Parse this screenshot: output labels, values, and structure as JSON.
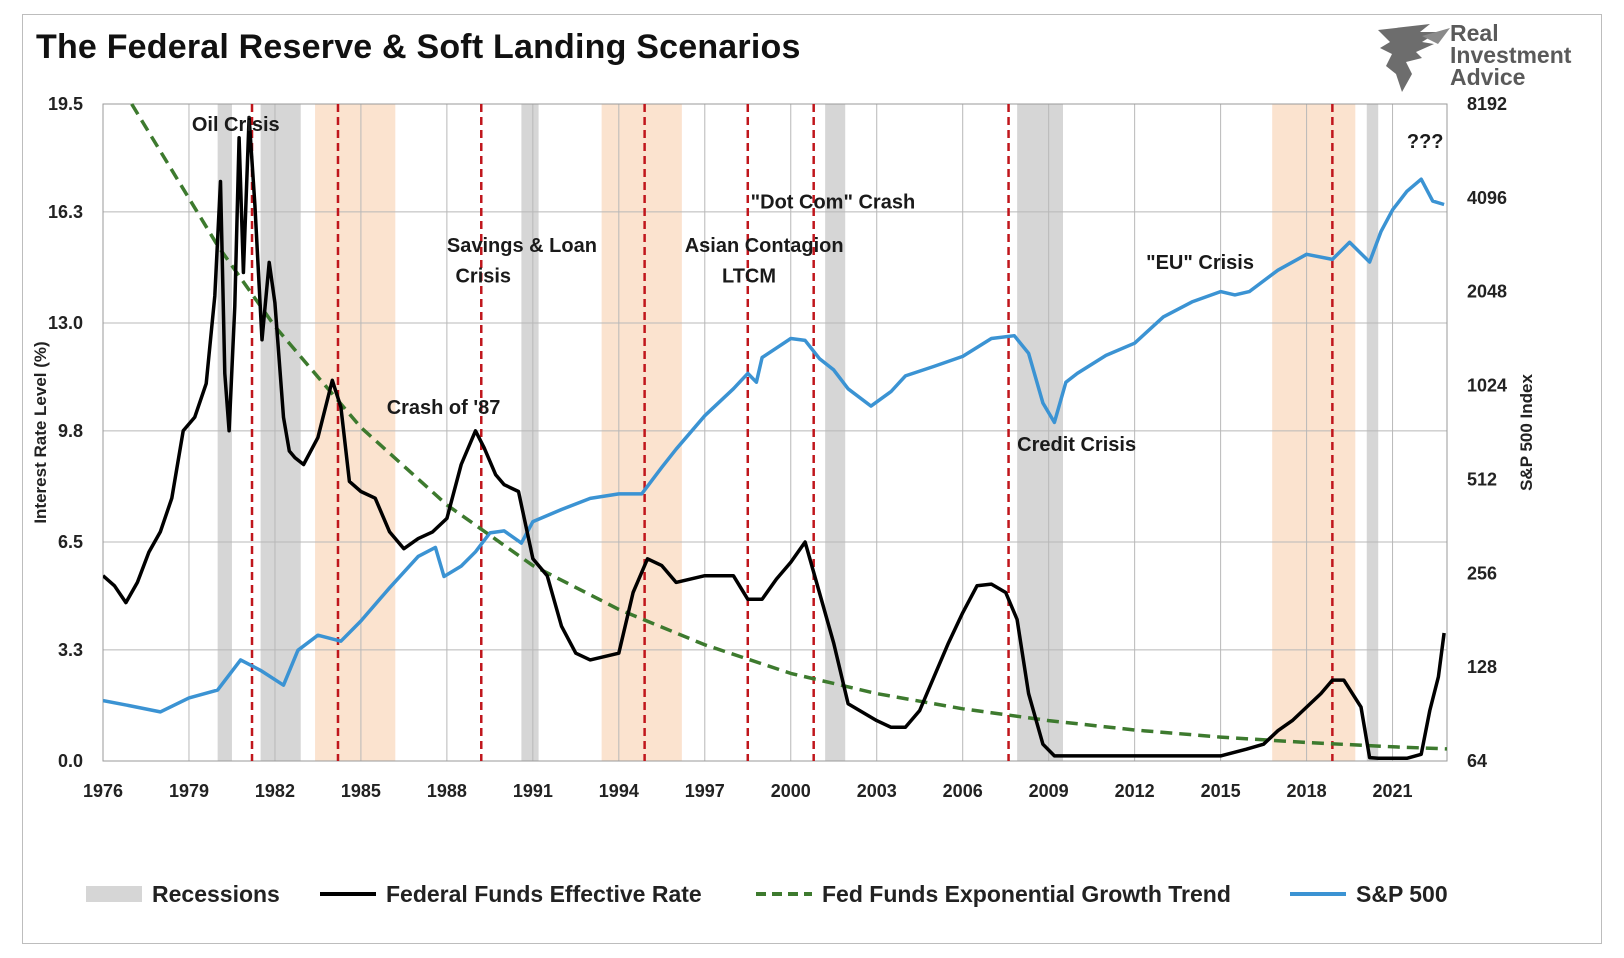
{
  "title": "The Federal Reserve & Soft Landing Scenarios",
  "brand": {
    "line1": "Real",
    "line2": "Investment",
    "line3": "Advice"
  },
  "colors": {
    "recession": "#d6d6d6",
    "landing": "#fbe3cf",
    "fed": "#000000",
    "trend": "#3d7a2e",
    "sp500": "#3b93d3",
    "marker": "#c0161c",
    "grid": "#b8b8b8"
  },
  "legend": {
    "recessions": "Recessions",
    "fed": "Federal Funds Effective Rate",
    "trend": "Fed Funds Exponential Growth Trend",
    "sp500": "S&P 500"
  },
  "chart_data": {
    "type": "line",
    "title": "The Federal Reserve & Soft Landing Scenarios",
    "ylabel": "Interest Rate Level (%)",
    "y2label": "S&P 500 Index",
    "x_range": [
      1976,
      2022.9
    ],
    "xticks": [
      "1976",
      "1979",
      "1982",
      "1985",
      "1988",
      "1991",
      "1994",
      "1997",
      "2000",
      "2003",
      "2006",
      "2009",
      "2012",
      "2015",
      "2018",
      "2021"
    ],
    "ylim": [
      0,
      19.5
    ],
    "yticks": [
      "0.0",
      "3.3",
      "6.5",
      "9.8",
      "13.0",
      "16.3",
      "19.5"
    ],
    "y2_scale": "log2",
    "y2lim": [
      64,
      8192
    ],
    "y2ticks": [
      "64",
      "128",
      "256",
      "512",
      "1024",
      "2048",
      "4096",
      "8192"
    ],
    "recessions": [
      [
        1980.0,
        1980.5
      ],
      [
        1981.5,
        1982.9
      ],
      [
        1990.6,
        1991.2
      ],
      [
        2001.2,
        2001.9
      ],
      [
        2007.9,
        2009.5
      ],
      [
        2020.1,
        2020.5
      ]
    ],
    "soft_landing_periods": [
      [
        1983.4,
        1986.2
      ],
      [
        1993.4,
        1996.2
      ],
      [
        2016.8,
        2019.7
      ]
    ],
    "tightening_markers": [
      1981.2,
      1984.2,
      1989.2,
      1994.9,
      1998.5,
      2000.8,
      2007.6,
      2018.9
    ],
    "annotations": [
      {
        "text": "Oil Crisis",
        "x": 1979.1,
        "y": 18.7
      },
      {
        "text": "Crash of '87",
        "x": 1985.9,
        "y": 10.3
      },
      {
        "text": "Savings & Loan",
        "x": 1988.0,
        "y": 15.1
      },
      {
        "text": "Crisis",
        "x": 1988.3,
        "y": 14.2
      },
      {
        "text": "Asian Contagion",
        "x": 1996.3,
        "y": 15.1
      },
      {
        "text": "LTCM",
        "x": 1997.6,
        "y": 14.2
      },
      {
        "text": "\"Dot Com\" Crash",
        "x": 1998.6,
        "y": 16.4
      },
      {
        "text": "\"EU\" Crisis",
        "x": 2012.4,
        "y": 14.6
      },
      {
        "text": "Credit Crisis",
        "x": 2007.9,
        "y": 9.2
      },
      {
        "text": "???",
        "x": 2021.5,
        "y": 18.2
      }
    ],
    "series": [
      {
        "name": "Federal Funds Effective Rate",
        "axis": "left",
        "x": [
          1976.0,
          1976.4,
          1976.8,
          1977.2,
          1977.6,
          1978.0,
          1978.4,
          1978.8,
          1979.2,
          1979.6,
          1979.9,
          1980.1,
          1980.25,
          1980.4,
          1980.6,
          1980.75,
          1980.9,
          1981.1,
          1981.3,
          1981.55,
          1981.8,
          1982.0,
          1982.3,
          1982.5,
          1982.7,
          1983.0,
          1983.5,
          1984.0,
          1984.3,
          1984.6,
          1985.0,
          1985.5,
          1986.0,
          1986.5,
          1987.0,
          1987.5,
          1988.0,
          1988.5,
          1989.0,
          1989.3,
          1989.7,
          1990.0,
          1990.5,
          1991.0,
          1991.5,
          1992.0,
          1992.5,
          1993.0,
          1994.0,
          1994.5,
          1995.0,
          1995.5,
          1996.0,
          1997.0,
          1998.0,
          1998.5,
          1999.0,
          1999.5,
          2000.0,
          2000.5,
          2001.0,
          2001.5,
          2002.0,
          2003.0,
          2003.5,
          2004.0,
          2004.5,
          2005.0,
          2005.5,
          2006.0,
          2006.5,
          2007.0,
          2007.5,
          2007.9,
          2008.3,
          2008.8,
          2009.2,
          2010.0,
          2012.0,
          2015.0,
          2015.9,
          2016.5,
          2017.0,
          2017.5,
          2018.0,
          2018.5,
          2018.9,
          2019.3,
          2019.6,
          2019.9,
          2020.2,
          2020.5,
          2021.0,
          2021.5,
          2022.0,
          2022.3,
          2022.6,
          2022.8
        ],
        "values": [
          5.5,
          5.2,
          4.7,
          5.3,
          6.2,
          6.8,
          7.8,
          9.8,
          10.2,
          11.2,
          13.8,
          17.2,
          11.5,
          9.8,
          13.5,
          18.5,
          14.5,
          19.1,
          16.5,
          12.5,
          14.8,
          13.6,
          10.2,
          9.2,
          9.0,
          8.8,
          9.6,
          11.3,
          10.5,
          8.3,
          8.0,
          7.8,
          6.8,
          6.3,
          6.6,
          6.8,
          7.2,
          8.8,
          9.8,
          9.3,
          8.5,
          8.2,
          8.0,
          6.0,
          5.5,
          4.0,
          3.2,
          3.0,
          3.2,
          5.0,
          6.0,
          5.8,
          5.3,
          5.5,
          5.5,
          4.8,
          4.8,
          5.4,
          5.9,
          6.5,
          5.0,
          3.5,
          1.7,
          1.2,
          1.0,
          1.0,
          1.5,
          2.5,
          3.5,
          4.4,
          5.2,
          5.25,
          5.0,
          4.2,
          2.0,
          0.5,
          0.15,
          0.15,
          0.15,
          0.15,
          0.35,
          0.5,
          0.9,
          1.2,
          1.6,
          2.0,
          2.4,
          2.4,
          2.0,
          1.6,
          0.1,
          0.08,
          0.08,
          0.08,
          0.2,
          1.5,
          2.5,
          3.8
        ]
      },
      {
        "name": "Fed Funds Exponential Growth Trend",
        "axis": "left",
        "x": [
          1977.0,
          1980.0,
          1982.0,
          1985.0,
          1988.0,
          1991.0,
          1994.0,
          1997.0,
          2000.0,
          2003.0,
          2006.0,
          2009.0,
          2012.0,
          2015.0,
          2018.0,
          2021.0,
          2022.9
        ],
        "values": [
          19.5,
          15.3,
          12.9,
          9.9,
          7.6,
          5.8,
          4.5,
          3.45,
          2.6,
          2.0,
          1.55,
          1.2,
          0.92,
          0.71,
          0.55,
          0.42,
          0.36
        ]
      },
      {
        "name": "S&P 500",
        "axis": "right",
        "x": [
          1976.0,
          1977.0,
          1978.0,
          1979.0,
          1980.0,
          1980.8,
          1981.5,
          1982.3,
          1982.8,
          1983.5,
          1984.3,
          1985.0,
          1986.0,
          1987.0,
          1987.6,
          1987.9,
          1988.5,
          1989.0,
          1989.5,
          1990.0,
          1990.6,
          1991.0,
          1992.0,
          1993.0,
          1994.0,
          1994.8,
          1995.5,
          1996.0,
          1997.0,
          1998.0,
          1998.5,
          1998.8,
          1999.0,
          1999.5,
          2000.0,
          2000.5,
          2001.0,
          2001.5,
          2002.0,
          2002.8,
          2003.5,
          2004.0,
          2005.0,
          2006.0,
          2007.0,
          2007.8,
          2008.3,
          2008.8,
          2009.2,
          2009.6,
          2010.0,
          2011.0,
          2012.0,
          2013.0,
          2014.0,
          2015.0,
          2015.5,
          2016.0,
          2017.0,
          2018.0,
          2018.9,
          2019.5,
          2020.2,
          2020.6,
          2021.0,
          2021.5,
          2022.0,
          2022.4,
          2022.8
        ],
        "values": [
          100,
          96,
          92,
          102,
          108,
          135,
          125,
          112,
          145,
          162,
          155,
          180,
          230,
          290,
          310,
          250,
          270,
          300,
          345,
          350,
          320,
          375,
          410,
          445,
          460,
          460,
          560,
          640,
          820,
          1000,
          1120,
          1050,
          1260,
          1350,
          1450,
          1430,
          1250,
          1150,
          1000,
          880,
          980,
          1100,
          1180,
          1270,
          1450,
          1480,
          1300,
          900,
          780,
          1050,
          1120,
          1280,
          1400,
          1700,
          1900,
          2050,
          2000,
          2050,
          2400,
          2700,
          2600,
          2950,
          2550,
          3200,
          3750,
          4300,
          4700,
          4000,
          3900
        ]
      }
    ]
  }
}
